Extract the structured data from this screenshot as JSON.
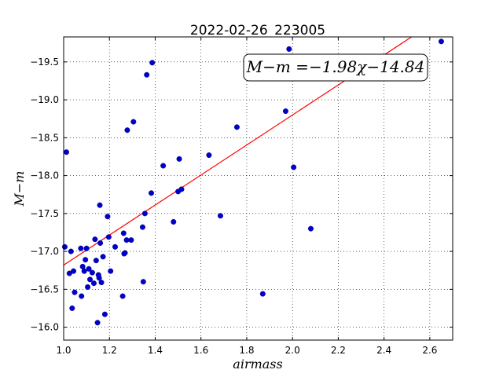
{
  "chart_data": {
    "type": "scatter",
    "title": "2022-02-26_223005",
    "xlabel": "airmass",
    "ylabel": "M−m",
    "xlim": [
      1.0,
      2.7
    ],
    "ylim": [
      -19.83,
      -15.83
    ],
    "y_inverted": true,
    "grid": true,
    "xticks": [
      1.0,
      1.2,
      1.4,
      1.6,
      1.8,
      2.0,
      2.2,
      2.4,
      2.6
    ],
    "xtick_labels": [
      "1.0",
      "1.2",
      "1.4",
      "1.6",
      "1.8",
      "2.0",
      "2.2",
      "2.4",
      "2.6"
    ],
    "yticks": [
      -16.0,
      -16.5,
      -17.0,
      -17.5,
      -18.0,
      -18.5,
      -19.0,
      -19.5
    ],
    "ytick_labels": [
      "−16.0",
      "−16.5",
      "−17.0",
      "−17.5",
      "−18.0",
      "−18.5",
      "−19.0",
      "−19.5"
    ],
    "annotation": "M−m =−1.98χ−14.84",
    "fit": {
      "slope": -1.98,
      "intercept": -14.84,
      "color": "#ff0000"
    },
    "series": [
      {
        "color": "#0000cc",
        "x": [
          1.005,
          1.012,
          1.025,
          1.032,
          1.037,
          1.043,
          1.048,
          1.075,
          1.078,
          1.083,
          1.09,
          1.095,
          1.1,
          1.105,
          1.11,
          1.115,
          1.125,
          1.132,
          1.137,
          1.142,
          1.148,
          1.152,
          1.155,
          1.158,
          1.16,
          1.165,
          1.172,
          1.18,
          1.192,
          1.197,
          1.205,
          1.225,
          1.258,
          1.262,
          1.264,
          1.268,
          1.275,
          1.278,
          1.295,
          1.305,
          1.345,
          1.348,
          1.355,
          1.363,
          1.383,
          1.387,
          1.435,
          1.48,
          1.5,
          1.505,
          1.515,
          1.635,
          1.685,
          1.757,
          1.87,
          1.97,
          1.985,
          2.005,
          2.08,
          2.65
        ],
        "y": [
          -17.06,
          -18.31,
          -16.71,
          -17.0,
          -16.25,
          -16.74,
          -16.46,
          -17.04,
          -16.41,
          -16.8,
          -16.74,
          -16.89,
          -17.04,
          -16.53,
          -16.77,
          -16.63,
          -16.72,
          -16.58,
          -17.16,
          -16.88,
          -16.06,
          -16.69,
          -16.65,
          -17.61,
          -17.11,
          -16.59,
          -16.93,
          -16.17,
          -17.46,
          -17.19,
          -16.74,
          -17.06,
          -16.41,
          -17.24,
          -16.97,
          -16.98,
          -17.15,
          -18.6,
          -17.15,
          -18.71,
          -17.32,
          -16.6,
          -17.5,
          -19.33,
          -17.77,
          -19.49,
          -18.13,
          -17.39,
          -17.79,
          -18.22,
          -17.82,
          -18.27,
          -17.47,
          -18.64,
          -16.44,
          -18.85,
          -19.67,
          -18.11,
          -17.3,
          -19.77
        ]
      }
    ]
  }
}
